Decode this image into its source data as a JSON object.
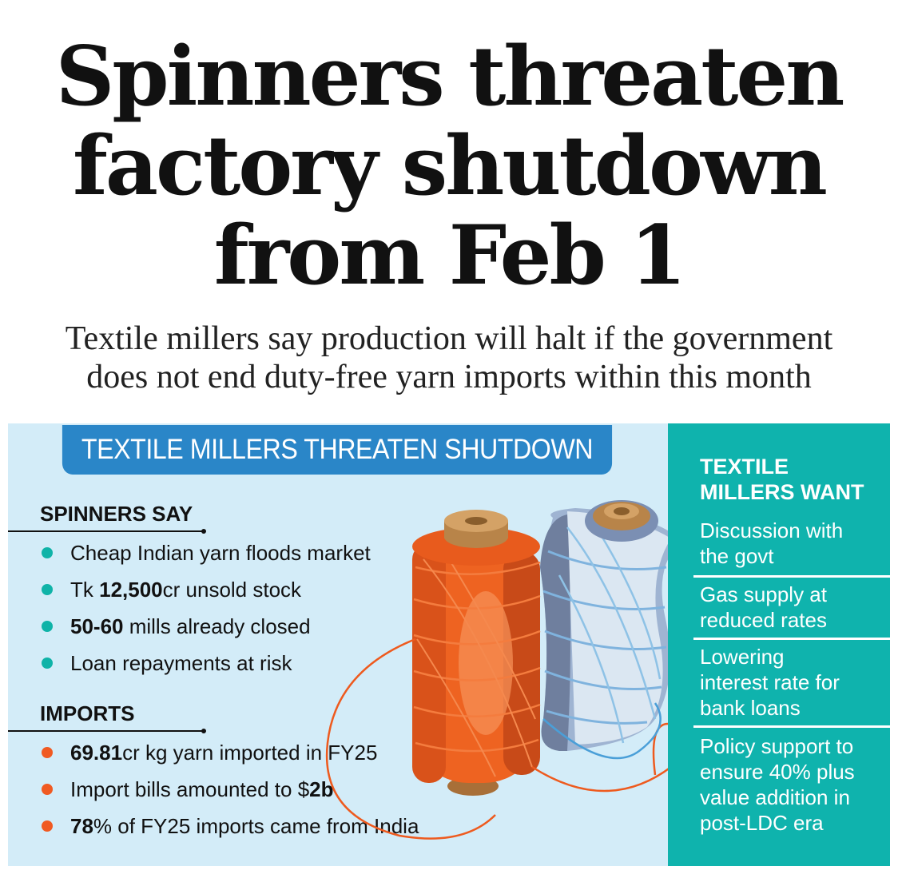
{
  "headline": {
    "line1": "Spinners threaten",
    "line2": "factory shutdown",
    "line3": "from Feb 1"
  },
  "subhead": {
    "line1": "Textile millers say production will halt if the government",
    "line2": "does not end duty-free yarn imports within this month"
  },
  "infographic": {
    "title": "TEXTILE MILLERS THREATEN SHUTDOWN",
    "spinners_say": {
      "heading": "SPINNERS SAY",
      "items": [
        {
          "pre": "",
          "bold": "",
          "post": "Cheap Indian yarn floods market"
        },
        {
          "pre": "Tk ",
          "bold": "12,500",
          "post": "cr unsold stock"
        },
        {
          "pre": "",
          "bold": "50-60",
          "post": " mills already closed"
        },
        {
          "pre": "",
          "bold": "",
          "post": "Loan repayments at risk"
        }
      ]
    },
    "imports": {
      "heading": "IMPORTS",
      "items": [
        {
          "pre": "",
          "bold": "69.81",
          "post": "cr kg yarn imported in FY25"
        },
        {
          "pre": "Import bills amounted to $",
          "bold": "2b",
          "post": ""
        },
        {
          "pre": "",
          "bold": "78",
          "post": "% of FY25 imports came from India"
        }
      ]
    },
    "millers_want": {
      "heading_line1": "TEXTILE",
      "heading_line2": "MILLERS WANT",
      "items": [
        {
          "line1": "Discussion with",
          "line2": "the govt",
          "line3": "",
          "line4": ""
        },
        {
          "line1": "Gas supply at",
          "line2": "reduced rates",
          "line3": "",
          "line4": ""
        },
        {
          "line1": "Lowering",
          "line2": "interest rate for",
          "line3": "bank loans",
          "line4": ""
        },
        {
          "line1": "Policy support to",
          "line2": "ensure 40% plus",
          "line3": "value addition in",
          "line4": "post-LDC era"
        }
      ]
    },
    "illustration": "yarn-spools-illustration",
    "colors": {
      "panel_bg": "#d3ecf8",
      "title_bar": "#2a86c8",
      "sidebar_bg": "#0fb3ad",
      "bullet_teal": "#0fb3a8",
      "bullet_orange": "#f05a22"
    }
  }
}
